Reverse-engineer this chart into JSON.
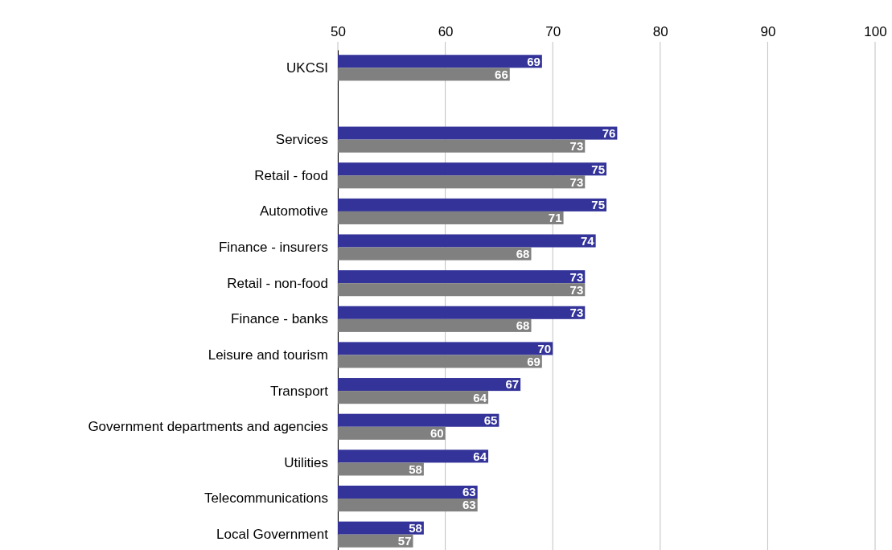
{
  "chart_data": {
    "type": "bar",
    "orientation": "horizontal",
    "categories": [
      "UKCSI",
      null,
      "Services",
      "Retail - food",
      "Automotive",
      "Finance - insurers",
      "Retail - non-food",
      "Finance - banks",
      "Leisure and tourism",
      "Transport",
      "Government departments and agencies",
      "Utilities",
      "Telecommunications",
      "Local Government"
    ],
    "series": [
      {
        "color": "#333399",
        "values": [
          69,
          null,
          76,
          75,
          75,
          74,
          73,
          73,
          70,
          67,
          65,
          64,
          63,
          58
        ]
      },
      {
        "color": "#808080",
        "values": [
          66,
          null,
          73,
          73,
          71,
          68,
          73,
          68,
          69,
          64,
          60,
          58,
          63,
          57
        ]
      }
    ],
    "xlim": [
      50,
      100
    ],
    "xticks": [
      50,
      60,
      70,
      80,
      90,
      100
    ],
    "grid": "x",
    "data_labels": true
  }
}
